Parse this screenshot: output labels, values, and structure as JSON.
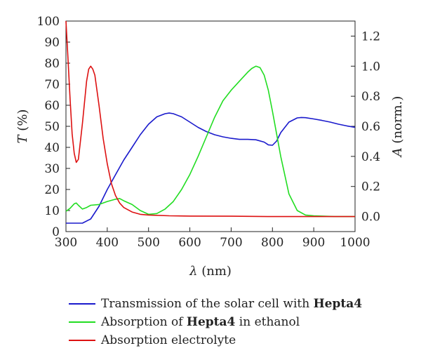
{
  "chart_data": {
    "type": "line",
    "xlabel_symbol": "λ",
    "xlabel_unit": " (nm)",
    "ylabel_left_symbol": "T",
    "ylabel_left_unit": " (%)",
    "ylabel_right_symbol": "A",
    "ylabel_right_unit": " (norm.)",
    "xlim": [
      300,
      1000
    ],
    "ylim_left": [
      0,
      100
    ],
    "ylim_right": [
      -0.1,
      1.3
    ],
    "xticks": [
      "300",
      "400",
      "500",
      "600",
      "700",
      "800",
      "900",
      "1000"
    ],
    "yticks_left": [
      "0",
      "10",
      "20",
      "30",
      "40",
      "50",
      "60",
      "70",
      "80",
      "90",
      "100"
    ],
    "yticks_right": [
      "0.0",
      "0.2",
      "0.4",
      "0.6",
      "0.8",
      "1.0",
      "1.2"
    ],
    "series": [
      {
        "name_parts": [
          "Transmission of the solar cell with ",
          "Hepta4",
          ""
        ],
        "axis": "left",
        "color": "#1a1acc",
        "x": [
          300,
          340,
          360,
          380,
          400,
          420,
          440,
          460,
          480,
          500,
          520,
          540,
          550,
          560,
          580,
          600,
          620,
          640,
          660,
          680,
          700,
          720,
          740,
          760,
          780,
          790,
          800,
          810,
          820,
          840,
          860,
          870,
          880,
          900,
          920,
          940,
          960,
          980,
          1000
        ],
        "y": [
          4,
          4,
          6,
          12,
          20,
          27,
          34,
          40,
          46,
          51,
          54.5,
          56,
          56.3,
          56,
          54.5,
          52,
          49.5,
          47.5,
          46,
          45,
          44.3,
          43.8,
          43.8,
          43.6,
          42.5,
          41.2,
          41,
          43,
          47,
          52,
          54,
          54.2,
          54.1,
          53.5,
          52.8,
          52,
          51,
          50.2,
          49.5
        ]
      },
      {
        "name_parts": [
          "Absorption of ",
          "Hepta4",
          " in ethanol"
        ],
        "axis": "right",
        "color": "#22dd22",
        "x": [
          300,
          310,
          320,
          325,
          330,
          340,
          350,
          360,
          380,
          400,
          420,
          430,
          440,
          460,
          480,
          500,
          520,
          540,
          560,
          580,
          600,
          620,
          640,
          660,
          680,
          700,
          720,
          740,
          750,
          760,
          770,
          780,
          790,
          800,
          810,
          820,
          840,
          860,
          880,
          900,
          950,
          1000
        ],
        "y": [
          0.035,
          0.055,
          0.085,
          0.09,
          0.075,
          0.05,
          0.06,
          0.075,
          0.08,
          0.1,
          0.115,
          0.12,
          0.105,
          0.08,
          0.04,
          0.015,
          0.02,
          0.05,
          0.1,
          0.18,
          0.28,
          0.4,
          0.53,
          0.66,
          0.77,
          0.84,
          0.9,
          0.96,
          0.985,
          1.0,
          0.99,
          0.94,
          0.84,
          0.7,
          0.55,
          0.4,
          0.15,
          0.04,
          0.01,
          0.005,
          0.0,
          0.0
        ]
      },
      {
        "name_parts": [
          "Absorption electrolyte",
          "",
          ""
        ],
        "axis": "right",
        "color": "#dd1111",
        "x": [
          300,
          305,
          310,
          315,
          320,
          325,
          330,
          340,
          350,
          355,
          360,
          365,
          370,
          380,
          390,
          400,
          410,
          420,
          430,
          440,
          460,
          480,
          500,
          550,
          600,
          700,
          800,
          900,
          1000
        ],
        "y": [
          1.32,
          1.05,
          0.78,
          0.55,
          0.42,
          0.36,
          0.38,
          0.62,
          0.9,
          0.98,
          1.0,
          0.98,
          0.94,
          0.74,
          0.52,
          0.35,
          0.22,
          0.14,
          0.09,
          0.06,
          0.03,
          0.015,
          0.01,
          0.005,
          0.003,
          0.002,
          0.0,
          0.0,
          0.0
        ]
      }
    ]
  }
}
